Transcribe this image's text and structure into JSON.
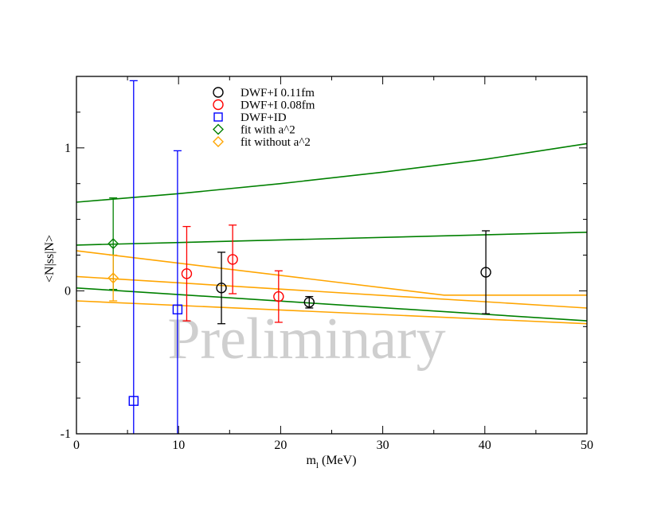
{
  "chart_data": {
    "type": "scatter",
    "xlabel": "m",
    "xlabel_sub": "l",
    "xlabel_unit": " (MeV)",
    "ylabel": "<N|ss|N>",
    "xlim": [
      0,
      50
    ],
    "ylim": [
      -1,
      1.5
    ],
    "x_ticks": [
      0,
      10,
      20,
      30,
      40,
      50
    ],
    "y_ticks": [
      -1,
      0,
      1
    ],
    "legend_position": "top-center",
    "watermark": "Preliminary",
    "series": [
      {
        "name": "DWF+I 0.11fm",
        "marker": "circle",
        "color": "#000000",
        "points": [
          {
            "x": 14.2,
            "y": 0.02,
            "err": 0.25
          },
          {
            "x": 22.8,
            "y": -0.08,
            "err": 0.04
          },
          {
            "x": 40.1,
            "y": 0.13,
            "err": 0.29
          }
        ]
      },
      {
        "name": "DWF+I 0.08fm",
        "marker": "circle",
        "color": "#ff0000",
        "points": [
          {
            "x": 10.8,
            "y": 0.12,
            "err": 0.33
          },
          {
            "x": 15.3,
            "y": 0.22,
            "err": 0.24
          },
          {
            "x": 19.8,
            "y": -0.04,
            "err": 0.18
          }
        ]
      },
      {
        "name": "DWF+ID",
        "marker": "square",
        "color": "#0000ff",
        "points": [
          {
            "x": 5.6,
            "y": -0.77,
            "err": 2.24
          },
          {
            "x": 9.9,
            "y": -0.13,
            "err": 1.11
          }
        ]
      },
      {
        "name": "fit with a^2",
        "marker": "diamond",
        "color": "#008000",
        "points": [
          {
            "x": 3.6,
            "y": 0.33,
            "err": 0.32
          }
        ]
      },
      {
        "name": "fit without a^2",
        "marker": "diamond",
        "color": "#ffa500",
        "points": [
          {
            "x": 3.6,
            "y": 0.09,
            "err": 0.16
          }
        ]
      }
    ],
    "curves": [
      {
        "color": "#008000",
        "x": [
          0,
          10,
          20,
          30,
          40,
          50
        ],
        "y": [
          0.62,
          0.68,
          0.75,
          0.83,
          0.92,
          1.03
        ]
      },
      {
        "color": "#008000",
        "x": [
          0,
          50
        ],
        "y": [
          0.32,
          0.41
        ]
      },
      {
        "color": "#008000",
        "x": [
          0,
          50
        ],
        "y": [
          0.02,
          -0.21
        ]
      },
      {
        "color": "#ffa500",
        "x": [
          0,
          36,
          50
        ],
        "y": [
          0.28,
          -0.03,
          -0.03
        ]
      },
      {
        "color": "#ffa500",
        "x": [
          0,
          50
        ],
        "y": [
          0.1,
          -0.12
        ]
      },
      {
        "color": "#ffa500",
        "x": [
          0,
          50
        ],
        "y": [
          -0.07,
          -0.23
        ]
      }
    ]
  }
}
